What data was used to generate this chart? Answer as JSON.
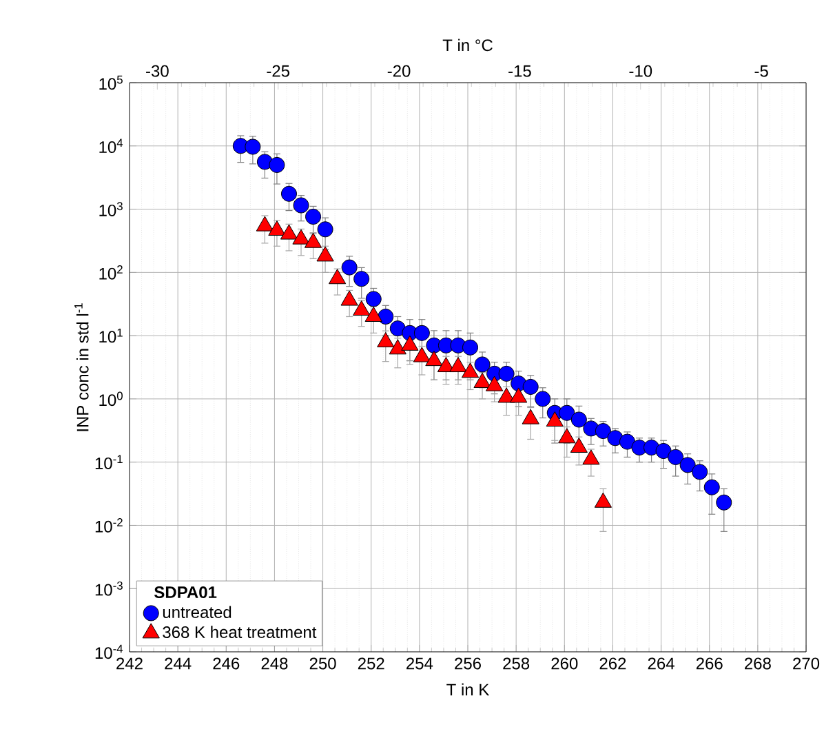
{
  "chart_data": {
    "type": "scatter",
    "xlabel": "T in K",
    "ylabel": "INP conc in std l$^{-1}$",
    "x2label": "T in °C",
    "legend_title": "SDPA01",
    "xlim": [
      242,
      270
    ],
    "xticks": [
      242,
      244,
      246,
      248,
      250,
      252,
      254,
      256,
      258,
      260,
      262,
      264,
      266,
      268,
      270
    ],
    "x2lim": [
      -31.15,
      -3.15
    ],
    "x2ticks": [
      -30,
      -25,
      -20,
      -15,
      -10,
      -5
    ],
    "ylim": [
      0.0001,
      100000
    ],
    "yticks": [
      {
        "value": 0.0001,
        "label": "10$^{-4}$"
      },
      {
        "value": 0.001,
        "label": "10$^{-3}$"
      },
      {
        "value": 0.01,
        "label": "10$^{-2}$"
      },
      {
        "value": 0.1,
        "label": "10$^{-1}$"
      },
      {
        "value": 1,
        "label": "10$^{0}$"
      },
      {
        "value": 10,
        "label": "10$^{1}$"
      },
      {
        "value": 100,
        "label": "10$^{2}$"
      },
      {
        "value": 1000,
        "label": "10$^{3}$"
      },
      {
        "value": 10000,
        "label": "10$^{4}$"
      },
      {
        "value": 100000,
        "label": "10$^{5}$"
      }
    ],
    "log": "y",
    "grid": true,
    "legend": "bottom left",
    "series": [
      {
        "name": "untreated",
        "color": "#0000ff",
        "marker": "circle",
        "x": [
          246.6,
          247.1,
          247.6,
          248.1,
          248.6,
          249.1,
          249.6,
          250.1,
          251.1,
          251.6,
          252.1,
          252.6,
          253.1,
          253.6,
          254.1,
          254.6,
          255.1,
          255.6,
          256.1,
          256.6,
          257.1,
          257.6,
          258.1,
          258.6,
          259.1,
          259.6,
          260.1,
          260.6,
          261.1,
          261.6,
          262.1,
          262.6,
          263.1,
          263.6,
          264.1,
          264.6,
          265.1,
          265.6,
          266.1,
          266.6
        ],
        "values": [
          10000,
          9700,
          5600,
          5000,
          1750,
          1150,
          760,
          480,
          120,
          79,
          38,
          20,
          13,
          11,
          11,
          7,
          7,
          7,
          6.5,
          3.5,
          2.5,
          2.5,
          1.75,
          1.55,
          1.0,
          0.6,
          0.6,
          0.47,
          0.34,
          0.31,
          0.24,
          0.21,
          0.17,
          0.17,
          0.15,
          0.12,
          0.09,
          0.07,
          0.04,
          0.023
        ],
        "errors": [
          4500,
          4500,
          2500,
          2500,
          800,
          500,
          350,
          250,
          60,
          40,
          18,
          10,
          7,
          7,
          7,
          5,
          5,
          5,
          4.5,
          2,
          1.3,
          1.3,
          1,
          0.8,
          0.5,
          0.4,
          0.4,
          0.3,
          0.15,
          0.13,
          0.1,
          0.09,
          0.07,
          0.07,
          0.07,
          0.06,
          0.045,
          0.035,
          0.025,
          0.015
        ]
      },
      {
        "name": "368 K heat treatment",
        "color": "#ff0000",
        "marker": "triangle",
        "x": [
          247.6,
          248.1,
          248.6,
          249.1,
          249.6,
          250.1,
          250.6,
          251.1,
          251.6,
          252.1,
          252.6,
          253.1,
          253.6,
          254.1,
          254.6,
          255.1,
          255.6,
          256.1,
          256.6,
          257.1,
          257.6,
          258.1,
          258.6,
          259.6,
          260.1,
          260.6,
          261.1,
          261.6
        ],
        "values": [
          540,
          460,
          400,
          335,
          295,
          180,
          79,
          36,
          25,
          20,
          7.9,
          6.1,
          7.0,
          4.6,
          4.0,
          3.2,
          3.2,
          2.6,
          1.8,
          1.6,
          1.05,
          1.05,
          0.48,
          0.44,
          0.24,
          0.17,
          0.11,
          0.023
        ],
        "errors": [
          250,
          200,
          180,
          150,
          130,
          80,
          35,
          16,
          11,
          9,
          4,
          3,
          3.5,
          2.2,
          2,
          1.5,
          1.5,
          1.2,
          0.8,
          0.7,
          0.5,
          0.5,
          0.25,
          0.22,
          0.12,
          0.08,
          0.05,
          0.015
        ]
      }
    ]
  }
}
